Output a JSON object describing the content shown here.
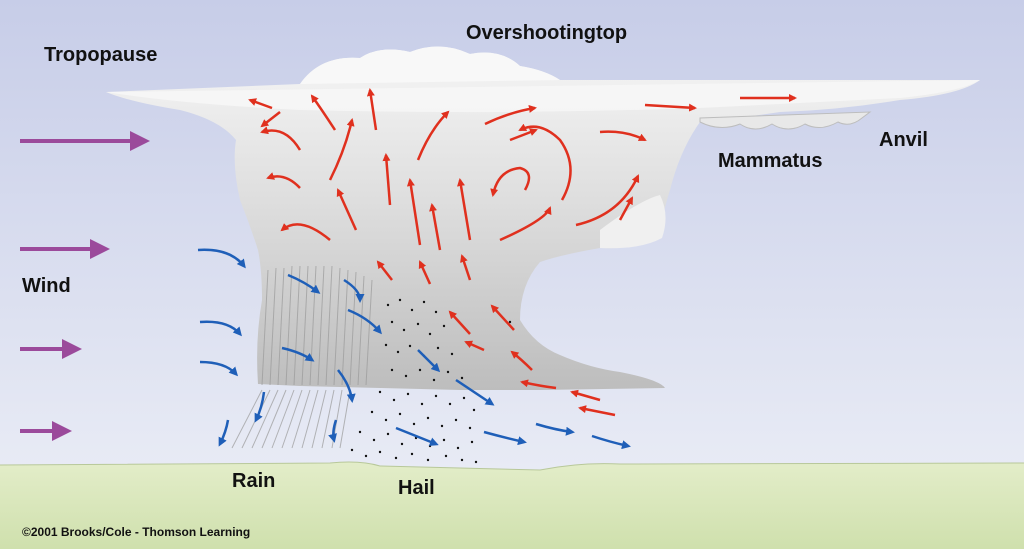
{
  "labels": {
    "tropopause": "Tropopause",
    "overshooting_top": "Overshootingtop",
    "anvil": "Anvil",
    "mammatus": "Mammatus",
    "wind": "Wind",
    "rain": "Rain",
    "hail": "Hail"
  },
  "copyright": "©2001 Brooks/Cole - Thomson Learning",
  "colors": {
    "sky_top": "#c9cfe8",
    "sky_bottom": "#e6e9f4",
    "ground": "#d9e8bd",
    "cloud": "#e4e4e4",
    "updraft_arrow": "#e0301e",
    "downdraft_arrow": "#1f5fb8",
    "wind_arrow": "#9b4a9b"
  }
}
